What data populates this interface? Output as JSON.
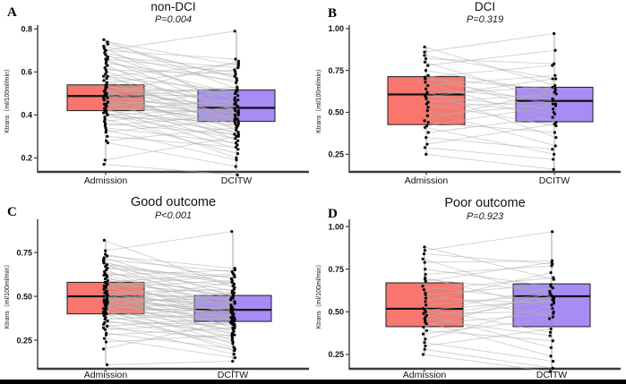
{
  "figure": {
    "ylabel": "Ktrans（ml/100ml/min）",
    "x_categories": [
      "Admission",
      "DCITW"
    ],
    "colors": {
      "box_admission": "#F8766D",
      "box_dcitw": "#A88BF4",
      "box_border": "#1c1c1c",
      "median": "#111111",
      "pair_line": "#b0b0b0",
      "stem": "#8c8c8c",
      "point": "#050505",
      "axis": "#3a3a3a",
      "tick_text": "#111111"
    }
  },
  "chart_data": [
    {
      "type": "paired-box",
      "panel_label": "A",
      "title": "non-DCI",
      "p_label": "P=0.004",
      "ylabel": "Ktrans（ml/100ml/min）",
      "categories": [
        "Admission",
        "DCITW"
      ],
      "yticks": [
        {
          "value": 0.2,
          "label": "0.2"
        },
        {
          "value": 0.4,
          "label": "0.4"
        },
        {
          "value": 0.6,
          "label": "0.6"
        },
        {
          "value": 0.8,
          "label": "0.8"
        }
      ],
      "ylim": [
        0.135,
        0.81
      ],
      "boxes": {
        "admission": {
          "q1": 0.42,
          "median": 0.488,
          "q3": 0.54
        },
        "dcitw": {
          "q1": 0.37,
          "median": 0.433,
          "q3": 0.516
        }
      },
      "pairs": [
        [
          0.75,
          0.52
        ],
        [
          0.74,
          0.63
        ],
        [
          0.72,
          0.58
        ],
        [
          0.71,
          0.44
        ],
        [
          0.7,
          0.79
        ],
        [
          0.7,
          0.66
        ],
        [
          0.73,
          0.57
        ],
        [
          0.69,
          0.55
        ],
        [
          0.68,
          0.47
        ],
        [
          0.67,
          0.62
        ],
        [
          0.66,
          0.41
        ],
        [
          0.66,
          0.6
        ],
        [
          0.65,
          0.5
        ],
        [
          0.64,
          0.56
        ],
        [
          0.63,
          0.36
        ],
        [
          0.62,
          0.48
        ],
        [
          0.61,
          0.59
        ],
        [
          0.6,
          0.42
        ],
        [
          0.59,
          0.33
        ],
        [
          0.58,
          0.51
        ],
        [
          0.58,
          0.64
        ],
        [
          0.57,
          0.45
        ],
        [
          0.56,
          0.38
        ],
        [
          0.55,
          0.61
        ],
        [
          0.54,
          0.4
        ],
        [
          0.54,
          0.35
        ],
        [
          0.53,
          0.5
        ],
        [
          0.53,
          0.46
        ],
        [
          0.52,
          0.28
        ],
        [
          0.52,
          0.43
        ],
        [
          0.51,
          0.52
        ],
        [
          0.51,
          0.37
        ],
        [
          0.5,
          0.44
        ],
        [
          0.5,
          0.31
        ],
        [
          0.49,
          0.49
        ],
        [
          0.49,
          0.41
        ],
        [
          0.49,
          0.65
        ],
        [
          0.48,
          0.34
        ],
        [
          0.48,
          0.53
        ],
        [
          0.47,
          0.39
        ],
        [
          0.47,
          0.26
        ],
        [
          0.46,
          0.45
        ],
        [
          0.46,
          0.36
        ],
        [
          0.45,
          0.42
        ],
        [
          0.45,
          0.3
        ],
        [
          0.44,
          0.51
        ],
        [
          0.44,
          0.38
        ],
        [
          0.43,
          0.24
        ],
        [
          0.43,
          0.41
        ],
        [
          0.42,
          0.35
        ],
        [
          0.42,
          0.47
        ],
        [
          0.41,
          0.32
        ],
        [
          0.41,
          0.2
        ],
        [
          0.4,
          0.43
        ],
        [
          0.4,
          0.29
        ],
        [
          0.39,
          0.37
        ],
        [
          0.38,
          0.22
        ],
        [
          0.37,
          0.44
        ],
        [
          0.36,
          0.31
        ],
        [
          0.35,
          0.4
        ],
        [
          0.34,
          0.27
        ],
        [
          0.33,
          0.19
        ],
        [
          0.32,
          0.38
        ],
        [
          0.3,
          0.25
        ],
        [
          0.28,
          0.34
        ],
        [
          0.27,
          0.16
        ],
        [
          0.19,
          0.3
        ],
        [
          0.17,
          0.12
        ]
      ]
    },
    {
      "type": "paired-box",
      "panel_label": "B",
      "title": "DCI",
      "p_label": "P=0.319",
      "ylabel": "Ktrans（ml/100ml/min）",
      "categories": [
        "Admission",
        "DCITW"
      ],
      "yticks": [
        {
          "value": 0.25,
          "label": "0.25"
        },
        {
          "value": 0.5,
          "label": "0.50"
        },
        {
          "value": 0.75,
          "label": "0.75"
        },
        {
          "value": 1.0,
          "label": "1.00"
        }
      ],
      "ylim": [
        0.145,
        1.01
      ],
      "boxes": {
        "admission": {
          "q1": 0.427,
          "median": 0.607,
          "q3": 0.713
        },
        "dcitw": {
          "q1": 0.444,
          "median": 0.568,
          "q3": 0.65
        }
      },
      "pairs": [
        [
          0.89,
          0.66
        ],
        [
          0.86,
          0.97
        ],
        [
          0.84,
          0.7
        ],
        [
          0.82,
          0.79
        ],
        [
          0.8,
          0.57
        ],
        [
          0.78,
          0.87
        ],
        [
          0.75,
          0.62
        ],
        [
          0.72,
          0.5
        ],
        [
          0.71,
          0.78
        ],
        [
          0.7,
          0.64
        ],
        [
          0.7,
          0.55
        ],
        [
          0.68,
          0.44
        ],
        [
          0.66,
          0.72
        ],
        [
          0.64,
          0.58
        ],
        [
          0.62,
          0.35
        ],
        [
          0.61,
          0.65
        ],
        [
          0.6,
          0.52
        ],
        [
          0.59,
          0.7
        ],
        [
          0.58,
          0.49
        ],
        [
          0.56,
          0.61
        ],
        [
          0.55,
          0.42
        ],
        [
          0.53,
          0.57
        ],
        [
          0.51,
          0.3
        ],
        [
          0.48,
          0.55
        ],
        [
          0.45,
          0.63
        ],
        [
          0.44,
          0.38
        ],
        [
          0.42,
          0.54
        ],
        [
          0.41,
          0.25
        ],
        [
          0.38,
          0.47
        ],
        [
          0.35,
          0.28
        ],
        [
          0.31,
          0.43
        ],
        [
          0.29,
          0.22
        ],
        [
          0.25,
          0.16
        ]
      ]
    },
    {
      "type": "paired-box",
      "panel_label": "C",
      "title": "Good outcome",
      "p_label": "P<0.001",
      "ylabel": "Ktrans（ml/100ml/min）",
      "categories": [
        "Admission",
        "DCITW"
      ],
      "yticks": [
        {
          "value": 0.25,
          "label": "0.25"
        },
        {
          "value": 0.5,
          "label": "0.50"
        },
        {
          "value": 0.75,
          "label": "0.75"
        }
      ],
      "ylim": [
        0.087,
        0.929
      ],
      "boxes": {
        "admission": {
          "q1": 0.4,
          "median": 0.5,
          "q3": 0.58
        },
        "dcitw": {
          "q1": 0.357,
          "median": 0.423,
          "q3": 0.505
        }
      },
      "pairs": [
        [
          0.82,
          0.55
        ],
        [
          0.76,
          0.87
        ],
        [
          0.74,
          0.6
        ],
        [
          0.72,
          0.5
        ],
        [
          0.71,
          0.64
        ],
        [
          0.7,
          0.46
        ],
        [
          0.69,
          0.58
        ],
        [
          0.68,
          0.42
        ],
        [
          0.67,
          0.53
        ],
        [
          0.66,
          0.61
        ],
        [
          0.65,
          0.38
        ],
        [
          0.64,
          0.49
        ],
        [
          0.63,
          0.56
        ],
        [
          0.62,
          0.44
        ],
        [
          0.61,
          0.34
        ],
        [
          0.6,
          0.52
        ],
        [
          0.59,
          0.47
        ],
        [
          0.58,
          0.63
        ],
        [
          0.58,
          0.4
        ],
        [
          0.57,
          0.51
        ],
        [
          0.56,
          0.36
        ],
        [
          0.55,
          0.45
        ],
        [
          0.55,
          0.59
        ],
        [
          0.54,
          0.32
        ],
        [
          0.53,
          0.48
        ],
        [
          0.53,
          0.41
        ],
        [
          0.52,
          0.54
        ],
        [
          0.52,
          0.37
        ],
        [
          0.51,
          0.44
        ],
        [
          0.51,
          0.28
        ],
        [
          0.5,
          0.5
        ],
        [
          0.5,
          0.39
        ],
        [
          0.49,
          0.46
        ],
        [
          0.49,
          0.33
        ],
        [
          0.48,
          0.42
        ],
        [
          0.48,
          0.25
        ],
        [
          0.47,
          0.49
        ],
        [
          0.47,
          0.36
        ],
        [
          0.46,
          0.43
        ],
        [
          0.46,
          0.3
        ],
        [
          0.45,
          0.52
        ],
        [
          0.45,
          0.38
        ],
        [
          0.44,
          0.23
        ],
        [
          0.44,
          0.41
        ],
        [
          0.43,
          0.35
        ],
        [
          0.43,
          0.47
        ],
        [
          0.42,
          0.31
        ],
        [
          0.42,
          0.19
        ],
        [
          0.41,
          0.44
        ],
        [
          0.41,
          0.27
        ],
        [
          0.4,
          0.37
        ],
        [
          0.4,
          0.21
        ],
        [
          0.39,
          0.43
        ],
        [
          0.38,
          0.29
        ],
        [
          0.37,
          0.4
        ],
        [
          0.36,
          0.24
        ],
        [
          0.35,
          0.34
        ],
        [
          0.34,
          0.17
        ],
        [
          0.33,
          0.38
        ],
        [
          0.32,
          0.26
        ],
        [
          0.31,
          0.35
        ],
        [
          0.29,
          0.2
        ],
        [
          0.28,
          0.32
        ],
        [
          0.26,
          0.15
        ],
        [
          0.24,
          0.28
        ],
        [
          0.2,
          0.36
        ],
        [
          0.11,
          0.13
        ],
        [
          0.73,
          0.66
        ],
        [
          0.68,
          0.57
        ],
        [
          0.62,
          0.65
        ],
        [
          0.56,
          0.62
        ],
        [
          0.47,
          0.58
        ]
      ]
    },
    {
      "type": "paired-box",
      "panel_label": "D",
      "title": "Poor outcome",
      "p_label": "P=0.923",
      "ylabel": "Ktrans（ml/100ml/min）",
      "categories": [
        "Admission",
        "DCITW"
      ],
      "yticks": [
        {
          "value": 0.25,
          "label": "0.25"
        },
        {
          "value": 0.5,
          "label": "0.50"
        },
        {
          "value": 0.75,
          "label": "0.75"
        },
        {
          "value": 1.0,
          "label": "1.00"
        }
      ],
      "ylim": [
        0.166,
        1.032
      ],
      "boxes": {
        "admission": {
          "q1": 0.413,
          "median": 0.518,
          "q3": 0.67
        },
        "dcitw": {
          "q1": 0.413,
          "median": 0.591,
          "q3": 0.664
        }
      },
      "pairs": [
        [
          0.88,
          0.69
        ],
        [
          0.86,
          0.97
        ],
        [
          0.84,
          0.78
        ],
        [
          0.81,
          0.58
        ],
        [
          0.79,
          0.8
        ],
        [
          0.75,
          0.65
        ],
        [
          0.72,
          0.77
        ],
        [
          0.7,
          0.52
        ],
        [
          0.69,
          0.62
        ],
        [
          0.68,
          0.79
        ],
        [
          0.65,
          0.56
        ],
        [
          0.63,
          0.7
        ],
        [
          0.61,
          0.47
        ],
        [
          0.6,
          0.66
        ],
        [
          0.58,
          0.55
        ],
        [
          0.56,
          0.73
        ],
        [
          0.54,
          0.6
        ],
        [
          0.52,
          0.38
        ],
        [
          0.51,
          0.57
        ],
        [
          0.5,
          0.64
        ],
        [
          0.49,
          0.5
        ],
        [
          0.48,
          0.29
        ],
        [
          0.47,
          0.59
        ],
        [
          0.46,
          0.36
        ],
        [
          0.45,
          0.57
        ],
        [
          0.44,
          0.24
        ],
        [
          0.43,
          0.49
        ],
        [
          0.41,
          0.61
        ],
        [
          0.39,
          0.33
        ],
        [
          0.37,
          0.46
        ],
        [
          0.34,
          0.54
        ],
        [
          0.32,
          0.21
        ],
        [
          0.3,
          0.4
        ],
        [
          0.28,
          0.17
        ],
        [
          0.25,
          0.15
        ]
      ]
    }
  ]
}
